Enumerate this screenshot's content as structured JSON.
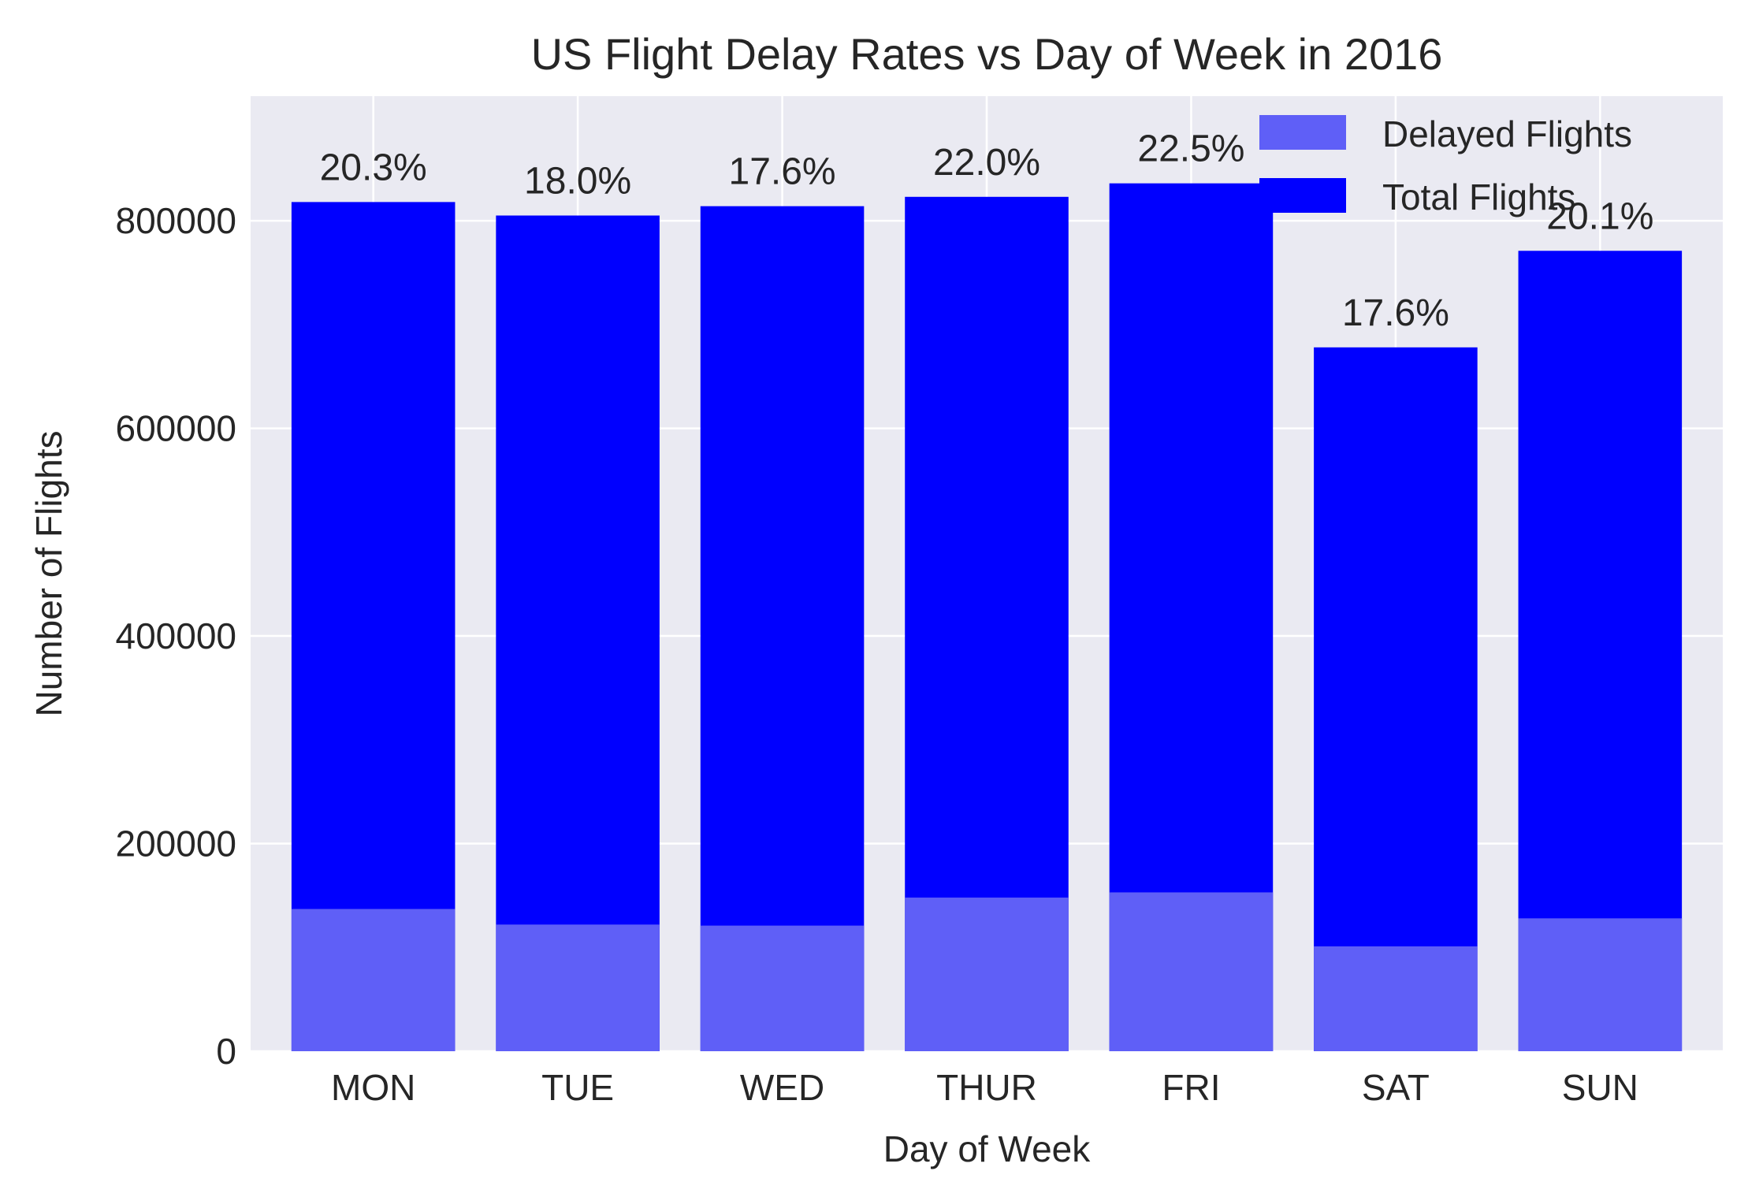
{
  "chart_data": {
    "type": "bar",
    "title": "US Flight Delay Rates vs Day of Week in 2016",
    "xlabel": "Day of Week",
    "ylabel": "Number of Flights",
    "categories": [
      "MON",
      "TUE",
      "WED",
      "THUR",
      "FRI",
      "SAT",
      "SUN"
    ],
    "series": [
      {
        "name": "Delayed Flights",
        "values": [
          137000,
          122000,
          121000,
          148000,
          153000,
          101000,
          128000
        ],
        "color": "#5f5ff7"
      },
      {
        "name": "Total Flights",
        "values": [
          818000,
          805000,
          814000,
          823000,
          836000,
          678000,
          771000
        ],
        "color": "#0000ff"
      }
    ],
    "data_labels": [
      "20.3%",
      "18.0%",
      "17.6%",
      "22.0%",
      "22.5%",
      "17.6%",
      "20.1%"
    ],
    "y_ticks": [
      "0",
      "200000",
      "400000",
      "600000",
      "800000"
    ],
    "y_tick_values": [
      0,
      200000,
      400000,
      600000,
      800000
    ],
    "ylim": [
      0,
      920000
    ],
    "grid": true,
    "legend_position": "top-right",
    "plot_background": "#eaeaf2",
    "grid_color": "#ffffff"
  }
}
